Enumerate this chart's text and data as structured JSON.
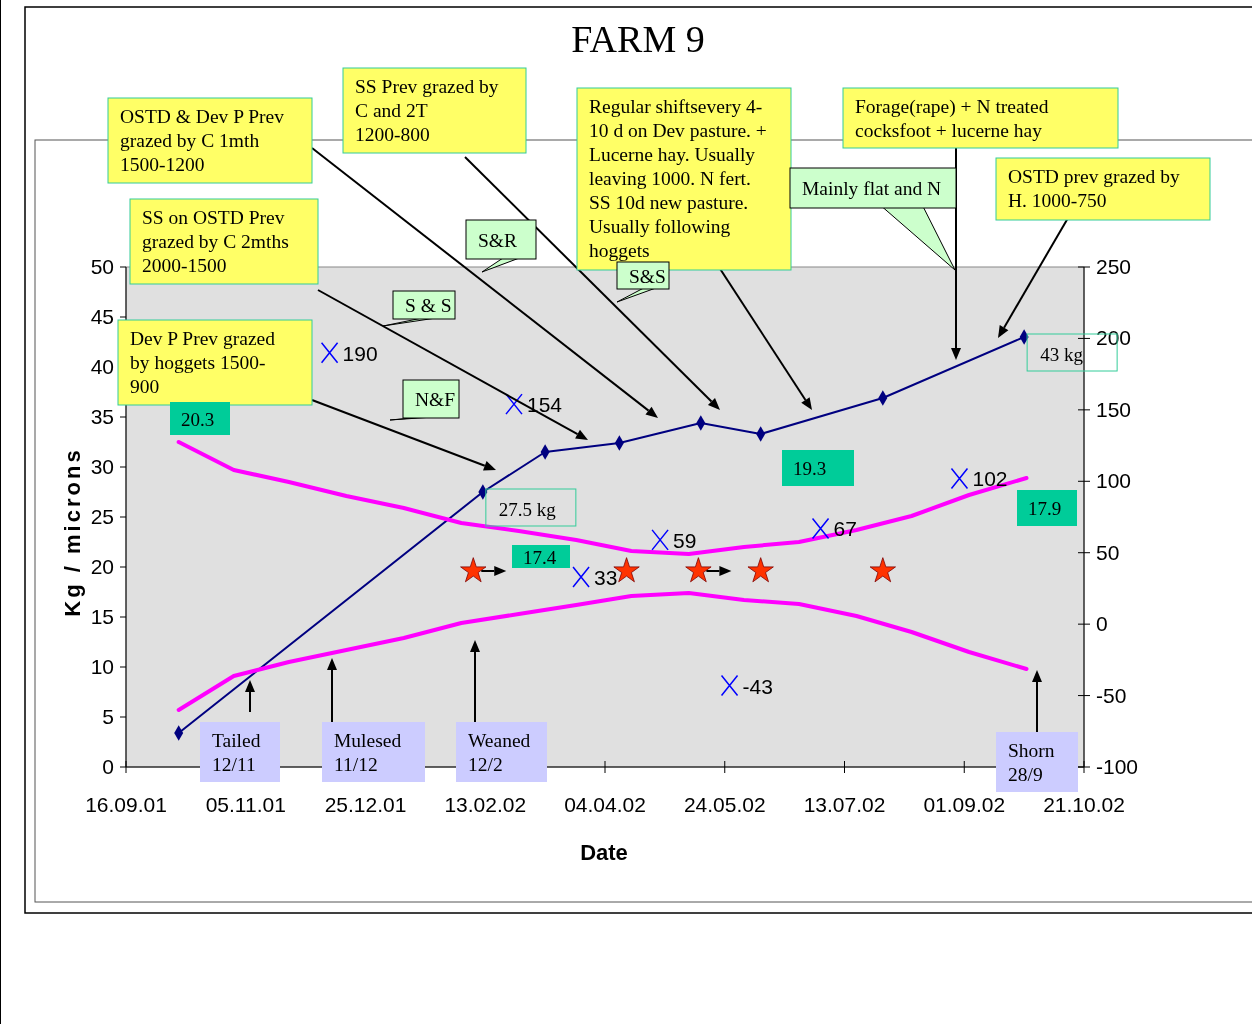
{
  "chart_data": {
    "type": "line",
    "title": "FARM 9",
    "xlabel": "Date",
    "ylabel": "Kg / microns",
    "xlim": [
      "2001-09-16",
      "2002-10-21"
    ],
    "xticks": [
      {
        "value": "2001-09-16",
        "label": "16.09.01"
      },
      {
        "value": "2001-11-05",
        "label": "05.11.01"
      },
      {
        "value": "2001-12-25",
        "label": "25.12.01"
      },
      {
        "value": "2002-02-13",
        "label": "13.02.02"
      },
      {
        "value": "2002-04-04",
        "label": "04.04.02"
      },
      {
        "value": "2002-05-24",
        "label": "24.05.02"
      },
      {
        "value": "2002-07-13",
        "label": "13.07.02"
      },
      {
        "value": "2002-09-01",
        "label": "01.09.02"
      },
      {
        "value": "2002-10-21",
        "label": "21.10.02"
      }
    ],
    "ylim": [
      0,
      50
    ],
    "yticks": [
      0,
      5,
      10,
      15,
      20,
      25,
      30,
      35,
      40,
      45,
      50
    ],
    "y2lim": [
      -100,
      250
    ],
    "y2ticks": [
      -100,
      -50,
      0,
      50,
      100,
      150,
      200,
      250
    ],
    "series": [
      {
        "color": "#000080",
        "marker": "diamond",
        "x": [
          "2001-10-08",
          "2002-02-12",
          "2002-03-10",
          "2002-04-10",
          "2002-05-14",
          "2002-06-08",
          "2002-07-29",
          "2002-09-26"
        ],
        "values": [
          3.4,
          27.5,
          31.5,
          32.4,
          34.4,
          33.3,
          36.9,
          43
        ]
      },
      {
        "color": "#ff00ff",
        "marker": "none",
        "x": [
          "2001-10-08",
          "2001-10-31",
          "2001-11-23",
          "2001-12-17",
          "2002-01-10",
          "2002-02-03",
          "2002-02-27",
          "2002-03-23",
          "2002-04-15",
          "2002-05-09",
          "2002-06-01",
          "2002-06-24",
          "2002-07-18",
          "2002-08-10",
          "2002-09-03",
          "2002-09-27"
        ],
        "values": [
          32.5,
          29.7,
          28.5,
          27.1,
          25.9,
          24.4,
          23.6,
          22.7,
          21.6,
          21.3,
          22.0,
          22.5,
          23.7,
          25.1,
          27.2,
          28.9
        ]
      },
      {
        "color": "#ff00ff",
        "marker": "none",
        "x": [
          "2001-10-08",
          "2001-10-31",
          "2001-11-23",
          "2001-12-17",
          "2002-01-10",
          "2002-02-03",
          "2002-02-27",
          "2002-03-23",
          "2002-04-15",
          "2002-05-09",
          "2002-06-01",
          "2002-06-24",
          "2002-07-18",
          "2002-08-10",
          "2002-09-03",
          "2002-09-27"
        ],
        "values": [
          5.7,
          9.1,
          10.5,
          11.7,
          12.9,
          14.4,
          15.3,
          16.2,
          17.1,
          17.4,
          16.7,
          16.3,
          15.1,
          13.5,
          11.5,
          9.8
        ]
      },
      {
        "type": "scatter",
        "axis": "y2",
        "color": "#0000ff",
        "marker": "cross",
        "x": [
          "2001-12-10",
          "2002-02-25",
          "2002-03-25",
          "2002-04-27",
          "2002-05-26",
          "2002-07-03",
          "2002-08-30"
        ],
        "values": [
          190,
          154,
          33,
          59,
          -43,
          67,
          102
        ],
        "value_labels": [
          "190",
          "154",
          "33",
          "59",
          "-43",
          "67",
          "102"
        ]
      },
      {
        "type": "scatter",
        "color": "#ff3300",
        "marker": "star",
        "x": [
          "2002-02-08",
          "2002-04-13",
          "2002-05-13",
          "2002-06-08",
          "2002-07-29"
        ],
        "values": [
          19.6,
          19.6,
          19.6,
          19.6,
          19.6
        ]
      }
    ],
    "annotations": [
      "OSTD & Dev P Prev\ngrazed by C 1mth\n1500-1200",
      "SS Prev grazed by\nC and 2T\n1200-800",
      "Regular shiftsevery 4-\n10 d on Dev pasture. +\nLucerne hay. Usually\nleaving 1000. N fert.\nSS 10d  new pasture.\nUsually following\nhoggets",
      "Forage(rape) + N treated\ncocksfoot + lucerne hay",
      "OSTD prev grazed by\nH. 1000-750",
      "SS on OSTD Prev\ngrazed by C 2mths\n2000-1500",
      "Dev P Prev grazed\nby hoggets 1500-\n900",
      "S&R",
      "S & S",
      "S&S",
      "N&F",
      "Mainly flat and N",
      "20.3",
      "17.4",
      "19.3",
      "17.9",
      "Tailed\n12/11",
      "Mulesed\n11/12",
      "Weaned\n12/2",
      "Shorn\n28/9",
      {
        "text": "27.5 kg",
        "x": "2002-02-12",
        "y": 27.5
      },
      {
        "text": "43 kg",
        "x": "2002-09-26",
        "y": 43
      }
    ]
  }
}
